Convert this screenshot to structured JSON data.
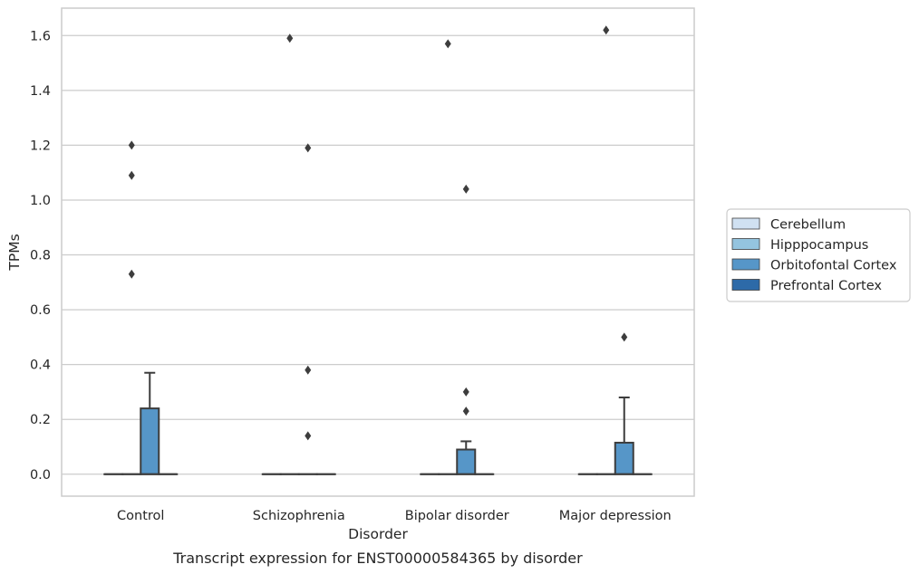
{
  "chart_data": {
    "type": "box",
    "title": "",
    "caption": "Transcript expression for ENST00000584365 by disorder",
    "xlabel": "Disorder",
    "ylabel": "TPMs",
    "ylim": [
      -0.08,
      1.7
    ],
    "yticks": [
      0.0,
      0.2,
      0.4,
      0.6,
      0.8,
      1.0,
      1.2,
      1.4,
      1.6
    ],
    "ytick_labels": [
      "0.0",
      "0.2",
      "0.4",
      "0.6",
      "0.8",
      "1.0",
      "1.2",
      "1.4",
      "1.6"
    ],
    "grid": "horizontal",
    "legend_position": "right",
    "categories": [
      "Control",
      "Schizophrenia",
      "Bipolar disorder",
      "Major depression"
    ],
    "series": [
      {
        "name": "Cerebellum",
        "color": "#d0e1f2",
        "boxes": [
          {
            "q1": 0,
            "median": 0,
            "q3": 0,
            "whisker_low": 0,
            "whisker_high": 0,
            "outliers": []
          },
          {
            "q1": 0,
            "median": 0,
            "q3": 0,
            "whisker_low": 0,
            "whisker_high": 0,
            "outliers": []
          },
          {
            "q1": 0,
            "median": 0,
            "q3": 0,
            "whisker_low": 0,
            "whisker_high": 0,
            "outliers": []
          },
          {
            "q1": 0,
            "median": 0,
            "q3": 0,
            "whisker_low": 0,
            "whisker_high": 0,
            "outliers": []
          }
        ]
      },
      {
        "name": "Hipppocampus",
        "color": "#94c4df",
        "boxes": [
          {
            "q1": 0,
            "median": 0,
            "q3": 0,
            "whisker_low": 0,
            "whisker_high": 0,
            "outliers": [
              1.2,
              1.09,
              0.73
            ]
          },
          {
            "q1": 0,
            "median": 0,
            "q3": 0,
            "whisker_low": 0,
            "whisker_high": 0,
            "outliers": [
              1.59
            ]
          },
          {
            "q1": 0,
            "median": 0,
            "q3": 0,
            "whisker_low": 0,
            "whisker_high": 0,
            "outliers": [
              1.57
            ]
          },
          {
            "q1": 0,
            "median": 0,
            "q3": 0,
            "whisker_low": 0,
            "whisker_high": 0,
            "outliers": [
              1.62
            ]
          }
        ]
      },
      {
        "name": "Orbitofontal Cortex",
        "color": "#5696c8",
        "boxes": [
          {
            "q1": 0,
            "median": 0,
            "q3": 0.24,
            "whisker_low": 0,
            "whisker_high": 0.37,
            "outliers": []
          },
          {
            "q1": 0,
            "median": 0,
            "q3": 0,
            "whisker_low": 0,
            "whisker_high": 0,
            "outliers": [
              1.19,
              0.38,
              0.14
            ]
          },
          {
            "q1": 0,
            "median": 0,
            "q3": 0.09,
            "whisker_low": 0,
            "whisker_high": 0.12,
            "outliers": [
              1.04,
              0.3,
              0.23
            ]
          },
          {
            "q1": 0,
            "median": 0,
            "q3": 0.115,
            "whisker_low": 0,
            "whisker_high": 0.28,
            "outliers": [
              0.5
            ]
          }
        ]
      },
      {
        "name": "Prefrontal Cortex",
        "color": "#2d6aa8",
        "boxes": [
          {
            "q1": 0,
            "median": 0,
            "q3": 0,
            "whisker_low": 0,
            "whisker_high": 0,
            "outliers": []
          },
          {
            "q1": 0,
            "median": 0,
            "q3": 0,
            "whisker_low": 0,
            "whisker_high": 0,
            "outliers": []
          },
          {
            "q1": 0,
            "median": 0,
            "q3": 0,
            "whisker_low": 0,
            "whisker_high": 0,
            "outliers": []
          },
          {
            "q1": 0,
            "median": 0,
            "q3": 0,
            "whisker_low": 0,
            "whisker_high": 0,
            "outliers": []
          }
        ]
      }
    ]
  }
}
